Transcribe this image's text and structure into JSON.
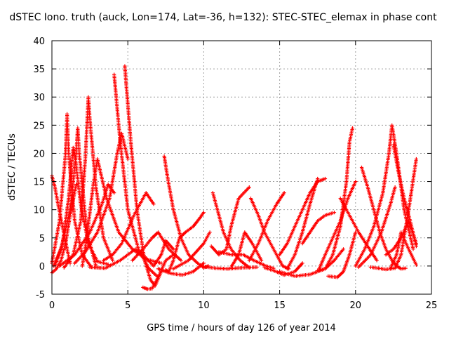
{
  "chart_data": {
    "type": "scatter",
    "title": "dSTEC Iono. truth (auck, Lon=174, Lat=-36, h=132): STEC-STEC_elemax in phase cont",
    "xlabel": "GPS time / hours of day 126 of year 2014",
    "ylabel": "dSTEC  / TECUs",
    "xlim": [
      0,
      25
    ],
    "ylim": [
      -5,
      40
    ],
    "xticks": [
      "0",
      "5",
      "10",
      "15",
      "20",
      "25"
    ],
    "yticks": [
      "-5",
      "0",
      "5",
      "10",
      "15",
      "20",
      "25",
      "30",
      "35",
      "40"
    ],
    "grid": true,
    "marker": "plus",
    "color": "#ff0000",
    "series": [
      {
        "x": [
          0.0,
          0.3,
          0.6,
          0.9,
          1.2,
          1.6
        ],
        "y": [
          -1.2,
          -0.5,
          1.0,
          4.0,
          9.0,
          14.5
        ]
      },
      {
        "x": [
          0.0,
          0.2,
          0.4,
          0.7,
          1.0,
          1.2
        ],
        "y": [
          16.0,
          14.0,
          11.0,
          7.0,
          3.0,
          0.5
        ]
      },
      {
        "x": [
          0.0,
          0.5,
          0.9,
          1.0,
          1.1,
          1.5,
          2.0,
          2.6,
          3.1
        ],
        "y": [
          0.5,
          8.0,
          20.0,
          27.0,
          20.0,
          8.0,
          2.0,
          -0.2,
          -0.3
        ]
      },
      {
        "x": [
          0.1,
          0.6,
          1.2,
          1.6,
          1.7,
          1.8,
          2.3,
          2.9
        ],
        "y": [
          0.0,
          3.0,
          10.0,
          20.0,
          24.5,
          20.0,
          6.0,
          0.0
        ]
      },
      {
        "x": [
          0.2,
          0.7,
          1.1,
          1.4,
          1.5,
          1.9,
          2.4,
          3.0,
          3.7
        ],
        "y": [
          0.0,
          4.0,
          12.0,
          21.0,
          20.0,
          11.0,
          4.0,
          0.8,
          0.3
        ]
      },
      {
        "x": [
          0.8,
          1.4,
          1.9,
          2.2,
          2.4,
          2.5,
          2.9,
          3.4,
          4.0
        ],
        "y": [
          -0.3,
          2.0,
          8.0,
          19.0,
          30.0,
          26.0,
          14.0,
          5.0,
          1.0
        ]
      },
      {
        "x": [
          0.5,
          1.5,
          2.5,
          3.3,
          3.7,
          4.1
        ],
        "y": [
          0.0,
          2.0,
          6.0,
          11.0,
          14.5,
          13.0
        ]
      },
      {
        "x": [
          1.5,
          2.2,
          3.0,
          3.8,
          4.3,
          4.6,
          5.0
        ],
        "y": [
          0.5,
          2.5,
          6.0,
          12.0,
          20.0,
          23.5,
          19.0
        ]
      },
      {
        "x": [
          2.0,
          2.3,
          2.7,
          3.0,
          3.6,
          4.4,
          5.3,
          6.2,
          7.2
        ],
        "y": [
          0.0,
          5.0,
          14.0,
          19.0,
          12.0,
          6.0,
          3.0,
          1.2,
          0.5
        ]
      },
      {
        "x": [
          4.1,
          4.2,
          4.5,
          5.0,
          5.7,
          6.4,
          7.0
        ],
        "y": [
          34.0,
          31.0,
          22.0,
          10.0,
          3.0,
          -0.5,
          -2.0
        ]
      },
      {
        "x": [
          4.8,
          4.9,
          5.2,
          5.6,
          6.1,
          6.5,
          6.8,
          7.2
        ],
        "y": [
          35.5,
          32.0,
          22.0,
          10.0,
          1.0,
          -2.5,
          -3.5,
          -1.0
        ]
      },
      {
        "x": [
          3.4,
          4.0,
          4.6,
          5.4,
          6.2,
          6.7
        ],
        "y": [
          1.0,
          2.0,
          4.0,
          9.0,
          13.0,
          11.0
        ]
      },
      {
        "x": [
          2.5,
          3.5,
          4.5,
          5.5,
          6.0,
          6.7,
          7.2,
          7.5,
          8.0
        ],
        "y": [
          -0.2,
          -0.4,
          1.0,
          3.0,
          2.0,
          0.0,
          2.0,
          4.5,
          3.0
        ]
      },
      {
        "x": [
          6.0,
          6.3,
          6.6,
          7.0,
          7.5,
          8.0
        ],
        "y": [
          -3.8,
          -4.1,
          -4.0,
          -2.0,
          1.0,
          2.0
        ]
      },
      {
        "x": [
          5.3,
          6.0,
          6.6,
          7.0,
          7.7,
          8.5
        ],
        "y": [
          1.0,
          3.0,
          5.0,
          6.0,
          3.0,
          1.0
        ]
      },
      {
        "x": [
          7.5,
          7.7,
          8.0,
          8.4,
          8.8,
          9.3,
          9.6,
          10.0
        ],
        "y": [
          -0.7,
          -1.0,
          1.0,
          5.0,
          6.0,
          7.0,
          8.0,
          9.5
        ]
      },
      {
        "x": [
          7.4,
          7.6,
          8.0,
          8.5,
          9.0,
          9.6,
          10.0,
          10.3
        ],
        "y": [
          19.5,
          16.0,
          10.0,
          5.0,
          2.0,
          0.5,
          -0.3,
          0.0
        ]
      },
      {
        "x": [
          7.0,
          7.8,
          8.6,
          9.3,
          10.0
        ],
        "y": [
          -0.5,
          -1.3,
          -1.6,
          -1.0,
          0.5
        ]
      },
      {
        "x": [
          8.0,
          9.0,
          10.0,
          10.4
        ],
        "y": [
          -0.5,
          1.0,
          4.0,
          6.0
        ]
      },
      {
        "x": [
          10.0,
          10.8,
          11.6,
          12.6,
          13.5
        ],
        "y": [
          -0.1,
          -0.4,
          -0.5,
          -0.3,
          -0.2
        ]
      },
      {
        "x": [
          10.6,
          10.9,
          11.3,
          11.8,
          12.4,
          13.0
        ],
        "y": [
          13.0,
          10.0,
          6.0,
          3.0,
          1.0,
          -0.3
        ]
      },
      {
        "x": [
          10.5,
          11.0,
          11.5,
          11.8,
          12.3,
          13.0
        ],
        "y": [
          3.5,
          2.0,
          3.0,
          7.0,
          12.0,
          14.0
        ]
      },
      {
        "x": [
          11.0,
          11.8,
          12.6,
          13.3,
          14.1,
          14.6
        ],
        "y": [
          2.5,
          2.0,
          2.0,
          1.0,
          0.0,
          -0.4
        ]
      },
      {
        "x": [
          11.8,
          12.3,
          12.7,
          13.2,
          13.8
        ],
        "y": [
          -0.2,
          2.0,
          6.0,
          4.0,
          1.0
        ]
      },
      {
        "x": [
          13.1,
          13.6,
          14.0,
          14.6,
          15.2,
          15.6
        ],
        "y": [
          12.0,
          9.0,
          6.0,
          3.0,
          0.0,
          -0.5
        ]
      },
      {
        "x": [
          13.0,
          13.6,
          14.2,
          14.8,
          15.3
        ],
        "y": [
          1.0,
          4.0,
          8.0,
          11.0,
          13.0
        ]
      },
      {
        "x": [
          14.0,
          14.6,
          15.3,
          16.0,
          16.5
        ],
        "y": [
          -0.3,
          -0.8,
          -1.6,
          -1.0,
          0.5
        ]
      },
      {
        "x": [
          15.0,
          15.5,
          16.0,
          16.5,
          17.0,
          17.5,
          18.0
        ],
        "y": [
          2.0,
          4.0,
          7.0,
          10.0,
          13.0,
          15.0,
          15.5
        ]
      },
      {
        "x": [
          15.5,
          16.0,
          16.5,
          17.0,
          17.5
        ],
        "y": [
          -0.5,
          2.0,
          6.0,
          11.0,
          15.5
        ]
      },
      {
        "x": [
          16.5,
          17.0,
          17.5,
          18.0,
          18.6
        ],
        "y": [
          4.0,
          6.0,
          8.0,
          9.0,
          9.5
        ]
      },
      {
        "x": [
          15.0,
          16.0,
          17.0,
          18.0,
          18.6,
          19.2
        ],
        "y": [
          -1.0,
          -1.8,
          -1.5,
          -0.5,
          1.0,
          3.0
        ]
      },
      {
        "x": [
          17.6,
          18.0,
          18.5,
          19.0,
          19.5,
          20.0
        ],
        "y": [
          -0.5,
          2.0,
          5.0,
          8.0,
          12.0,
          15.0
        ]
      },
      {
        "x": [
          17.5,
          18.0,
          18.5,
          19.0,
          19.4,
          19.6,
          19.8
        ],
        "y": [
          -0.8,
          -0.5,
          2.0,
          7.0,
          15.0,
          22.0,
          24.5
        ]
      },
      {
        "x": [
          18.2,
          18.8,
          19.2,
          19.6,
          20.0
        ],
        "y": [
          -1.8,
          -2.0,
          -1.0,
          2.0,
          6.0
        ]
      },
      {
        "x": [
          20.4,
          20.8,
          21.2,
          21.6,
          22.0,
          22.4,
          22.7,
          23.0,
          23.3
        ],
        "y": [
          17.5,
          14.0,
          10.0,
          6.0,
          3.0,
          1.0,
          0.0,
          -0.5,
          -0.4
        ]
      },
      {
        "x": [
          20.0,
          20.6,
          21.2,
          21.8,
          22.2,
          22.4,
          22.7,
          23.2,
          23.8
        ],
        "y": [
          0.0,
          3.0,
          7.0,
          13.0,
          20.0,
          25.0,
          20.0,
          10.0,
          3.0
        ]
      },
      {
        "x": [
          20.2,
          21.0,
          21.7,
          22.3,
          22.6
        ],
        "y": [
          -0.2,
          2.0,
          6.0,
          11.0,
          14.0
        ]
      },
      {
        "x": [
          22.5,
          22.8,
          23.2,
          23.6,
          24.0
        ],
        "y": [
          21.5,
          17.0,
          12.0,
          8.0,
          3.5
        ]
      },
      {
        "x": [
          21.0,
          22.0,
          22.6,
          23.0,
          23.5,
          24.0
        ],
        "y": [
          -0.2,
          -0.6,
          -0.4,
          2.0,
          10.0,
          19.0
        ]
      },
      {
        "x": [
          22.0,
          22.5,
          23.0,
          23.5,
          24.0
        ],
        "y": [
          2.0,
          3.0,
          5.0,
          8.0,
          4.0
        ]
      },
      {
        "x": [
          19.0,
          19.6,
          20.2,
          20.8,
          21.4
        ],
        "y": [
          12.0,
          9.0,
          6.0,
          3.5,
          1.0
        ]
      },
      {
        "x": [
          22.3,
          22.7,
          23.0,
          23.5,
          24.0
        ],
        "y": [
          -0.4,
          2.0,
          6.0,
          3.0,
          0.2
        ]
      }
    ]
  }
}
